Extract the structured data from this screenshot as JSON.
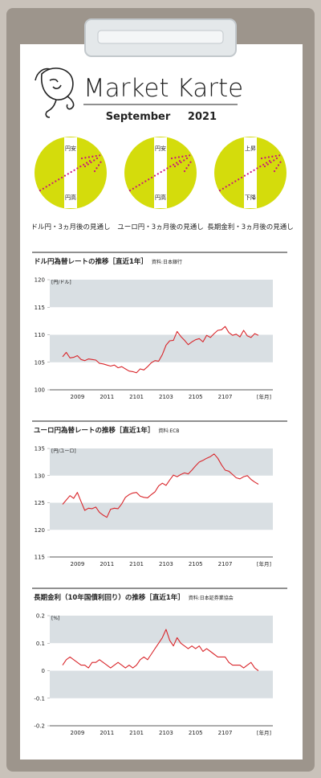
{
  "header": {
    "title": "Market Karte",
    "month": "September",
    "year": "2021"
  },
  "outlook": [
    {
      "top": "円安",
      "bottom": "円高",
      "caption": "ドル円・3ヵ月後の見通し"
    },
    {
      "top": "円安",
      "bottom": "円高",
      "caption": "ユーロ円・3ヵ月後の見通し"
    },
    {
      "top": "上昇",
      "bottom": "下降",
      "caption": "長期金利・3ヵ月後の見通し"
    }
  ],
  "chart_data": [
    {
      "type": "line",
      "title": "ドル円為替レートの推移［直近1年］",
      "source": "資料:日本銀行",
      "y_unit": "[円/ドル]",
      "x_label": "[年月]",
      "categories": [
        null,
        null,
        null,
        null,
        "2009",
        null,
        null,
        null,
        null,
        null,
        null,
        null,
        "2011",
        null,
        null,
        null,
        null,
        null,
        null,
        null,
        "2101",
        null,
        null,
        null,
        null,
        null,
        null,
        null,
        "2103",
        null,
        null,
        null,
        null,
        null,
        null,
        null,
        "2105",
        null,
        null,
        null,
        null,
        null,
        null,
        null,
        "2107",
        null,
        null,
        null,
        null,
        null,
        null,
        null,
        null,
        null
      ],
      "color": "#d9262b",
      "values": [
        106.0,
        106.8,
        105.8,
        105.9,
        106.2,
        105.5,
        105.3,
        105.6,
        105.5,
        105.4,
        104.8,
        104.7,
        104.5,
        104.3,
        104.5,
        104.0,
        104.2,
        103.8,
        103.4,
        103.3,
        103.1,
        103.8,
        103.6,
        104.2,
        104.9,
        105.3,
        105.2,
        106.4,
        108.1,
        108.9,
        109.0,
        110.6,
        109.7,
        109.0,
        108.2,
        108.7,
        109.1,
        109.3,
        108.7,
        109.9,
        109.5,
        110.2,
        110.8,
        110.9,
        111.5,
        110.4,
        109.9,
        110.1,
        109.6,
        110.8,
        109.8,
        109.5,
        110.2,
        109.9
      ],
      "ylim": [
        100,
        120
      ],
      "yticks": [
        100,
        105,
        110,
        115,
        120
      ]
    },
    {
      "type": "line",
      "title": "ユーロ円為替レートの推移［直近1年］",
      "source": "資料:ECB",
      "y_unit": "[円/ユーロ]",
      "x_label": "[年月]",
      "categories": [
        null,
        null,
        null,
        null,
        "2009",
        null,
        null,
        null,
        null,
        null,
        null,
        null,
        "2011",
        null,
        null,
        null,
        null,
        null,
        null,
        null,
        "2101",
        null,
        null,
        null,
        null,
        null,
        null,
        null,
        "2103",
        null,
        null,
        null,
        null,
        null,
        null,
        null,
        "2105",
        null,
        null,
        null,
        null,
        null,
        null,
        null,
        "2107",
        null,
        null,
        null,
        null,
        null,
        null,
        null,
        null,
        null
      ],
      "color": "#d9262b",
      "values": [
        124.7,
        125.5,
        126.3,
        125.8,
        126.9,
        125.2,
        123.6,
        124.0,
        123.9,
        124.2,
        123.2,
        122.7,
        122.3,
        123.8,
        124.0,
        123.9,
        124.8,
        126.0,
        126.5,
        126.8,
        126.9,
        126.2,
        126.0,
        125.9,
        126.5,
        127.0,
        128.1,
        128.6,
        128.2,
        129.2,
        130.1,
        129.8,
        130.2,
        130.5,
        130.3,
        131.0,
        131.8,
        132.5,
        132.8,
        133.2,
        133.5,
        134.0,
        133.2,
        132.0,
        131.0,
        130.8,
        130.2,
        129.6,
        129.4,
        129.8,
        130.0,
        129.3,
        128.8,
        128.4
      ],
      "ylim": [
        115,
        135
      ],
      "yticks": [
        115,
        120,
        125,
        130,
        135
      ]
    },
    {
      "type": "line",
      "title": "長期金利（10年国債利回り）の推移［直近1年］",
      "source": "資料:日本証券業協会",
      "y_unit": "[%]",
      "x_label": "[年月]",
      "categories": [
        null,
        null,
        null,
        null,
        "2009",
        null,
        null,
        null,
        null,
        null,
        null,
        null,
        "2011",
        null,
        null,
        null,
        null,
        null,
        null,
        null,
        "2101",
        null,
        null,
        null,
        null,
        null,
        null,
        null,
        "2103",
        null,
        null,
        null,
        null,
        null,
        null,
        null,
        "2105",
        null,
        null,
        null,
        null,
        null,
        null,
        null,
        "2107",
        null,
        null,
        null,
        null,
        null,
        null,
        null,
        null,
        null
      ],
      "color": "#d9262b",
      "values": [
        0.02,
        0.04,
        0.05,
        0.04,
        0.03,
        0.02,
        0.02,
        0.01,
        0.03,
        0.03,
        0.04,
        0.03,
        0.02,
        0.01,
        0.02,
        0.03,
        0.02,
        0.01,
        0.02,
        0.01,
        0.02,
        0.04,
        0.05,
        0.04,
        0.06,
        0.08,
        0.1,
        0.12,
        0.15,
        0.11,
        0.09,
        0.12,
        0.1,
        0.09,
        0.08,
        0.09,
        0.08,
        0.09,
        0.07,
        0.08,
        0.07,
        0.06,
        0.05,
        0.05,
        0.05,
        0.03,
        0.02,
        0.02,
        0.02,
        0.01,
        0.02,
        0.03,
        0.01,
        0.0
      ],
      "ylim": [
        -0.2,
        0.2
      ],
      "yticks": [
        -0.2,
        -0.1,
        0,
        0.1,
        0.2
      ]
    }
  ]
}
